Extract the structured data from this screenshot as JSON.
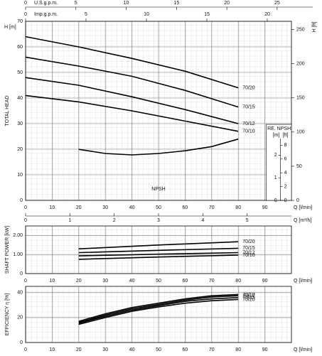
{
  "chart_data": [
    {
      "type": "line",
      "ylabel": "TOTAL HEAD",
      "yunit": "H [m]",
      "y2unit": "H [ft]",
      "xlabel": "Q [l/min]",
      "grid": true,
      "x": [
        0,
        20,
        40,
        60,
        80
      ],
      "series": [
        {
          "name": "70/20",
          "color": "#000000",
          "values": [
            64,
            60,
            55.5,
            50.5,
            44
          ]
        },
        {
          "name": "70/15",
          "color": "#000000",
          "values": [
            56,
            52.5,
            48.5,
            43,
            36.5
          ]
        },
        {
          "name": "70/12",
          "color": "#000000",
          "values": [
            48,
            45,
            40.5,
            35.5,
            30
          ]
        },
        {
          "name": "70/10",
          "color": "#000000",
          "values": [
            41,
            38.5,
            35,
            31,
            27
          ]
        }
      ],
      "xlim": [
        0,
        100
      ],
      "xticks": [
        0,
        10,
        20,
        30,
        40,
        50,
        60,
        70,
        80,
        90
      ],
      "ylim": [
        0,
        70
      ],
      "yticks": [
        0,
        10,
        20,
        30,
        40,
        50,
        60,
        70
      ],
      "y2lim": [
        0,
        262
      ],
      "y2ticks": [
        0,
        50,
        100,
        150,
        200,
        250
      ],
      "top_axes": [
        {
          "label": "U.S.g.p.m.",
          "xlim": [
            0,
            26.42
          ],
          "xticks": [
            0,
            5,
            10,
            15,
            20,
            25
          ]
        },
        {
          "label": "Imp.g.p.m.",
          "xlim": [
            0,
            22
          ],
          "xticks": [
            0,
            5,
            10,
            15,
            20
          ]
        }
      ],
      "bottom_axis2": {
        "label": "Q [m³/h]",
        "xlim": [
          0,
          6
        ],
        "xticks": [
          0,
          1,
          2,
          3,
          4,
          5
        ]
      },
      "npsh": {
        "name": "NPSH",
        "title": "RE. NPSH",
        "unit_m": "[m]",
        "unit_ft": "[ft]",
        "x": [
          20,
          30,
          40,
          50,
          60,
          70,
          80
        ],
        "values": [
          7.4,
          6.8,
          6.6,
          6.8,
          7.2,
          7.8,
          8.9
        ],
        "ylim": [
          0,
          10
        ],
        "ticks_ft": [
          0,
          2,
          4,
          6,
          8
        ],
        "ticks_m": [
          {
            "value": 0,
            "label": "0"
          },
          {
            "value": 3.28,
            "label": "1"
          },
          {
            "value": 6.56,
            "label": "2"
          }
        ]
      }
    },
    {
      "type": "line",
      "ylabel": "SHAFT POWER [kW]",
      "xlabel": "Q [l/min]",
      "grid": true,
      "x": [
        20,
        50,
        80
      ],
      "series": [
        {
          "name": "70/20",
          "color": "#000000",
          "values": [
            1.3,
            1.5,
            1.67
          ]
        },
        {
          "name": "70/15",
          "color": "#000000",
          "values": [
            1.1,
            1.22,
            1.33
          ]
        },
        {
          "name": "70/12",
          "color": "#000000",
          "values": [
            0.93,
            1.02,
            1.1
          ]
        },
        {
          "name": "70/10",
          "color": "#000000",
          "values": [
            0.75,
            0.87,
            0.97
          ]
        }
      ],
      "xlim": [
        0,
        100
      ],
      "xticks": [
        0,
        10,
        20,
        30,
        40,
        50,
        60,
        70,
        80,
        90
      ],
      "ylim": [
        0,
        2.5
      ],
      "yticks": [
        0,
        {
          "value": 1,
          "label": "1.00"
        },
        {
          "value": 2,
          "label": "2.00"
        }
      ]
    },
    {
      "type": "line",
      "ylabel": "EFFICIENCY η [%]",
      "xlabel": "Q [l/min]",
      "grid": true,
      "x": [
        20,
        30,
        40,
        50,
        60,
        70,
        80
      ],
      "series": [
        {
          "name": "70/10",
          "color": "#000000",
          "values": [
            17,
            23,
            28,
            31.5,
            35,
            37.5,
            38.5
          ]
        },
        {
          "name": "70/12",
          "color": "#000000",
          "values": [
            16,
            22,
            27,
            30.5,
            34,
            36.5,
            37.5
          ]
        },
        {
          "name": "70/15",
          "color": "#000000",
          "values": [
            15.5,
            21,
            26,
            29.5,
            33,
            35,
            36
          ]
        },
        {
          "name": "70/20",
          "color": "#000000",
          "values": [
            14.5,
            20,
            25,
            28.5,
            31.5,
            33.5,
            34.5
          ]
        }
      ],
      "xlim": [
        0,
        100
      ],
      "xticks": [
        0,
        10,
        20,
        30,
        40,
        50,
        60,
        70,
        80,
        90
      ],
      "ylim": [
        0,
        45
      ],
      "yticks": [
        0,
        20,
        40
      ]
    }
  ]
}
